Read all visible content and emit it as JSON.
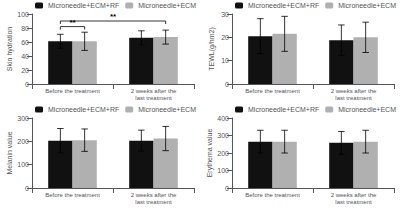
{
  "chart_data": [
    {
      "type": "bar",
      "ylabel": "Skin hydration",
      "categories": [
        "Before the treatment",
        "2 weeks after the\nlast treatment"
      ],
      "series": [
        {
          "name": "Microneedle+ECM+RF",
          "color": "#111111",
          "values": [
            61,
            66
          ],
          "errors": [
            10,
            10
          ]
        },
        {
          "name": "Microneedle+ECM",
          "color": "#b0b0b0",
          "values": [
            61,
            67
          ],
          "errors": [
            13,
            10
          ]
        }
      ],
      "ylim": [
        0,
        100
      ],
      "yticks": [
        0,
        20,
        40,
        60,
        80,
        100
      ],
      "grid": false,
      "legend": "upper right",
      "annotations": [
        {
          "text": "**",
          "y": 82,
          "from": {
            "category": "Before the treatment",
            "series": "Microneedle+ECM+RF"
          },
          "to": {
            "category": "Before the treatment",
            "series": "Microneedle+ECM"
          }
        },
        {
          "text": "**",
          "y": 90,
          "from": {
            "category": "Before the treatment",
            "series": "Microneedle+ECM+RF"
          },
          "to": {
            "category": "2 weeks after the\nlast treatment",
            "series": "Microneedle+ECM"
          }
        }
      ]
    },
    {
      "type": "bar",
      "ylabel": "TEWL(g/hm2)",
      "categories": [
        "Before the treatment",
        "2 weeks after the\nlast treatment"
      ],
      "series": [
        {
          "name": "Microneedle+ECM+RF",
          "color": "#111111",
          "values": [
            20.5,
            18.8
          ],
          "errors": [
            7.5,
            6.5
          ]
        },
        {
          "name": "Microneedle+ECM",
          "color": "#b0b0b0",
          "values": [
            21.5,
            20.0
          ],
          "errors": [
            7.5,
            6.5
          ]
        }
      ],
      "ylim": [
        0,
        30
      ],
      "yticks": [
        0,
        10,
        20,
        30
      ],
      "grid": false,
      "legend": "upper right"
    },
    {
      "type": "bar",
      "ylabel": "Melanin value",
      "categories": [
        "Before the treatment",
        "2 weeks after the\nlast treatment"
      ],
      "series": [
        {
          "name": "Microneedle+ECM+RF",
          "color": "#111111",
          "values": [
            203,
            203
          ],
          "errors": [
            52,
            45
          ]
        },
        {
          "name": "Microneedle+ECM",
          "color": "#b0b0b0",
          "values": [
            205,
            212
          ],
          "errors": [
            48,
            52
          ]
        }
      ],
      "ylim": [
        0,
        300
      ],
      "yticks": [
        0,
        100,
        200,
        300
      ],
      "grid": false,
      "legend": "upper right"
    },
    {
      "type": "bar",
      "ylabel": "Erythema value",
      "categories": [
        "Before the treatment",
        "2 weeks after the\nlast treatment"
      ],
      "series": [
        {
          "name": "Microneedle+ECM+RF",
          "color": "#111111",
          "values": [
            265,
            258
          ],
          "errors": [
            65,
            65
          ]
        },
        {
          "name": "Microneedle+ECM",
          "color": "#b0b0b0",
          "values": [
            265,
            265
          ],
          "errors": [
            65,
            65
          ]
        }
      ],
      "ylim": [
        0,
        400
      ],
      "yticks": [
        0,
        100,
        200,
        300,
        400
      ],
      "grid": false,
      "legend": "upper right"
    }
  ]
}
